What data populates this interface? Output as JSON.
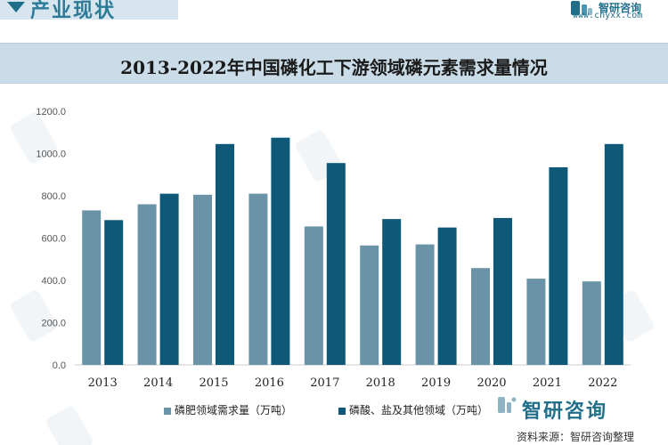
{
  "header": {
    "section_title": "产业现状",
    "brand_name": "智研咨询",
    "brand_url": "www.chyxx.com"
  },
  "footer": {
    "brand_name": "智研咨询",
    "source": "资料来源：智研咨询整理"
  },
  "colors": {
    "series1": "#6a93a7",
    "series2": "#0e5878",
    "band": "#c9dce8",
    "accent": "#1f6f8b"
  },
  "chart_data": {
    "type": "bar",
    "title": "2013-2022年中国磷化工下游领域磷元素需求量情况",
    "xlabel": "",
    "ylabel": "",
    "ylim": [
      0,
      1200
    ],
    "yticks": [
      0,
      200,
      400,
      600,
      800,
      1000,
      1200
    ],
    "ytick_labels": [
      "0.0",
      "200.0",
      "400.0",
      "600.0",
      "800.0",
      "1000.0",
      "1200.0"
    ],
    "grid": false,
    "legend_position": "bottom",
    "categories": [
      "2013",
      "2014",
      "2015",
      "2016",
      "2017",
      "2018",
      "2019",
      "2020",
      "2021",
      "2022"
    ],
    "series": [
      {
        "name": "磷肥领域需求量（万吨）",
        "values": [
          731,
          760,
          805,
          810,
          655,
          565,
          570,
          458,
          408,
          395
        ]
      },
      {
        "name": "磷酸、盐及其他领域（万吨）",
        "values": [
          685,
          810,
          1045,
          1075,
          955,
          690,
          650,
          695,
          935,
          1045
        ]
      }
    ]
  }
}
